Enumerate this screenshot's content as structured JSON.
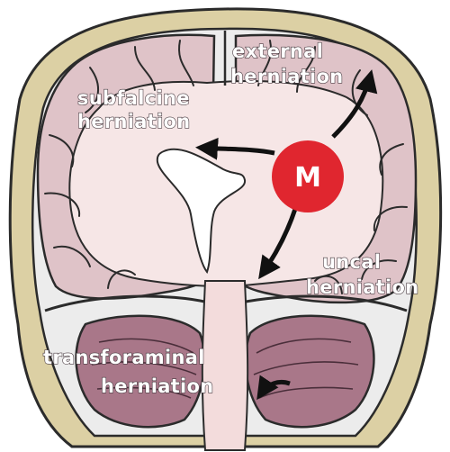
{
  "labels": {
    "external_line1": "external",
    "external_line2": "herniation",
    "subfalcine_line1": "subfalcine",
    "subfalcine_line2": "herniation",
    "uncal_line1": "uncal",
    "uncal_line2": "herniation",
    "transforaminal_line1": "transforaminal",
    "transforaminal_line2": "herniation",
    "mass": "M"
  },
  "colors": {
    "skull": "#dcd0a4",
    "dura_gap": "#e8e8e8",
    "cortex": "#dfc3c8",
    "white_matter": "#f6e6e6",
    "cerebellum": "#a97789",
    "ventricle": "#ffffff",
    "mass": "#e0262f",
    "outline": "#2b2b2b",
    "arrow": "#111111"
  }
}
